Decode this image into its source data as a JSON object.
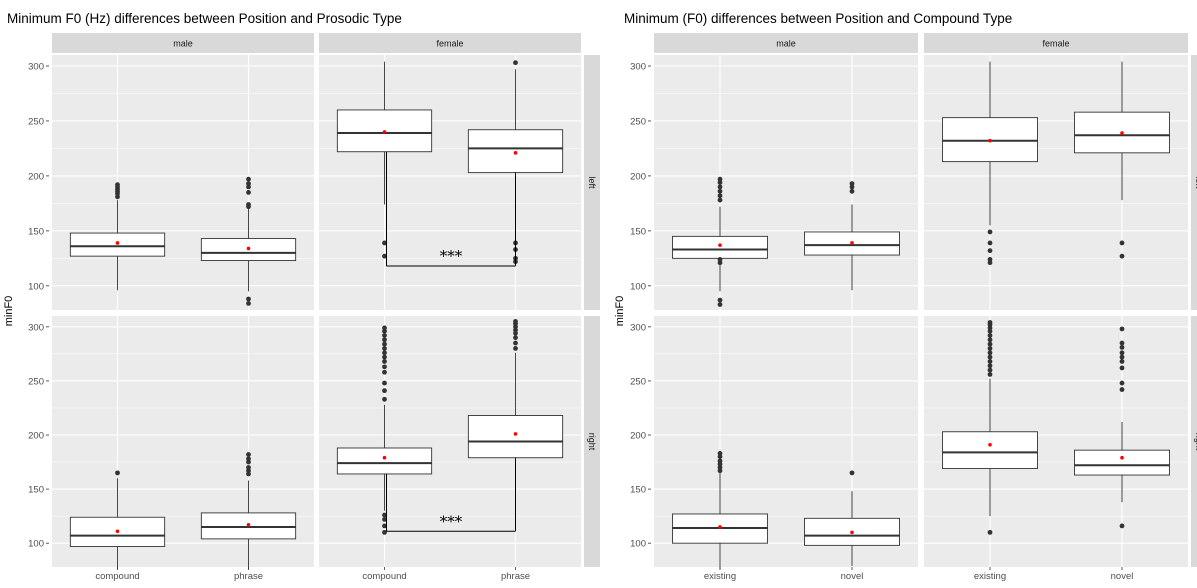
{
  "chart_data": [
    {
      "type": "boxplot",
      "title": "Minimum F0 (Hz) differences between Position and Prosodic Type",
      "xlabel": "",
      "ylabel": "minF0",
      "column_facets": [
        "male",
        "female"
      ],
      "row_facets": [
        "left",
        "right"
      ],
      "categories": [
        "compound",
        "phrase"
      ],
      "yticks": [
        100,
        150,
        200,
        250,
        300
      ],
      "ylim": [
        78,
        310
      ],
      "significance_label": "***",
      "panels": [
        {
          "gender": "male",
          "position": "left",
          "boxes": [
            {
              "category": "compound",
              "min": 96,
              "q1": 127,
              "median": 136,
              "q3": 148,
              "max": 178,
              "mean": 139,
              "outliers": [
                181,
                184,
                186,
                188,
                190,
                192
              ]
            },
            {
              "category": "phrase",
              "min": 95,
              "q1": 123,
              "median": 130,
              "q3": 143,
              "max": 170,
              "mean": 134,
              "outliers": [
                84,
                88,
                172,
                174,
                185,
                190,
                193,
                197
              ]
            }
          ]
        },
        {
          "gender": "female",
          "position": "left",
          "significance": {
            "label": "***",
            "bracket_y": 118
          },
          "boxes": [
            {
              "category": "compound",
              "min": 174,
              "q1": 222,
              "median": 239,
              "q3": 260,
              "max": 304,
              "mean": 240,
              "outliers": [
                127,
                139
              ]
            },
            {
              "category": "phrase",
              "min": 148,
              "q1": 203,
              "median": 225,
              "q3": 242,
              "max": 297,
              "mean": 221,
              "outliers": [
                122,
                125,
                133,
                139,
                303
              ]
            }
          ]
        },
        {
          "gender": "male",
          "position": "right",
          "boxes": [
            {
              "category": "compound",
              "min": 76,
              "q1": 97,
              "median": 107,
              "q3": 124,
              "max": 160,
              "mean": 111,
              "outliers": [
                165
              ]
            },
            {
              "category": "phrase",
              "min": 76,
              "q1": 104,
              "median": 115,
              "q3": 128,
              "max": 158,
              "mean": 117,
              "outliers": [
                164,
                167,
                170,
                175,
                178,
                182
              ]
            }
          ]
        },
        {
          "gender": "female",
          "position": "right",
          "significance": {
            "label": "***",
            "bracket_y": 111
          },
          "boxes": [
            {
              "category": "compound",
              "min": 130,
              "q1": 164,
              "median": 174,
              "q3": 188,
              "max": 228,
              "mean": 179,
              "outliers": [
                110,
                116,
                122,
                126,
                233,
                241,
                248,
                258,
                263,
                268,
                272,
                276,
                280,
                284,
                288,
                292,
                296,
                299
              ]
            },
            {
              "category": "phrase",
              "min": 131,
              "q1": 179,
              "median": 194,
              "q3": 218,
              "max": 276,
              "mean": 201,
              "outliers": [
                280,
                285,
                290,
                294,
                297,
                300,
                303,
                305
              ]
            }
          ]
        }
      ]
    },
    {
      "type": "boxplot",
      "title": "Minimum (F0) differences between Position and Compound Type",
      "xlabel": "",
      "ylabel": "minF0",
      "column_facets": [
        "male",
        "female"
      ],
      "row_facets": [
        "left",
        "right"
      ],
      "categories": [
        "existing",
        "novel"
      ],
      "yticks": [
        100,
        150,
        200,
        250,
        300
      ],
      "ylim": [
        78,
        310
      ],
      "panels": [
        {
          "gender": "male",
          "position": "left",
          "boxes": [
            {
              "category": "existing",
              "min": 95,
              "q1": 125,
              "median": 133,
              "q3": 145,
              "max": 172,
              "mean": 137,
              "outliers": [
                83,
                87,
                121,
                124,
                178,
                182,
                186,
                190,
                194,
                197
              ]
            },
            {
              "category": "novel",
              "min": 96,
              "q1": 128,
              "median": 137,
              "q3": 149,
              "max": 174,
              "mean": 139,
              "outliers": [
                186,
                190,
                193
              ]
            }
          ]
        },
        {
          "gender": "female",
          "position": "left",
          "boxes": [
            {
              "category": "existing",
              "min": 155,
              "q1": 213,
              "median": 232,
              "q3": 253,
              "max": 304,
              "mean": 232,
              "outliers": [
                121,
                124,
                132,
                139,
                149
              ]
            },
            {
              "category": "novel",
              "min": 178,
              "q1": 221,
              "median": 237,
              "q3": 258,
              "max": 304,
              "mean": 239,
              "outliers": [
                127,
                139
              ]
            }
          ]
        },
        {
          "gender": "male",
          "position": "right",
          "boxes": [
            {
              "category": "existing",
              "min": 76,
              "q1": 100,
              "median": 114,
              "q3": 127,
              "max": 165,
              "mean": 115,
              "outliers": [
                167,
                170,
                173,
                176,
                180,
                183
              ]
            },
            {
              "category": "novel",
              "min": 79,
              "q1": 98,
              "median": 107,
              "q3": 123,
              "max": 148,
              "mean": 110,
              "outliers": [
                165
              ]
            }
          ]
        },
        {
          "gender": "female",
          "position": "right",
          "boxes": [
            {
              "category": "existing",
              "min": 125,
              "q1": 169,
              "median": 184,
              "q3": 203,
              "max": 252,
              "mean": 191,
              "outliers": [
                110,
                256,
                260,
                264,
                268,
                272,
                276,
                280,
                284,
                288,
                292,
                296,
                299,
                302,
                304
              ]
            },
            {
              "category": "novel",
              "min": 138,
              "q1": 163,
              "median": 172,
              "q3": 186,
              "max": 212,
              "mean": 179,
              "outliers": [
                116,
                242,
                248,
                262,
                268,
                272,
                276,
                281,
                285,
                298
              ]
            }
          ]
        }
      ]
    }
  ],
  "colors": {
    "panel_background": "#ebebeb",
    "grid": "#ffffff",
    "strip_background": "#d9d9d9",
    "box_fill": "#ffffff",
    "box_line": "#333333",
    "outlier": "#333333",
    "mean_point": "#ff0000"
  }
}
